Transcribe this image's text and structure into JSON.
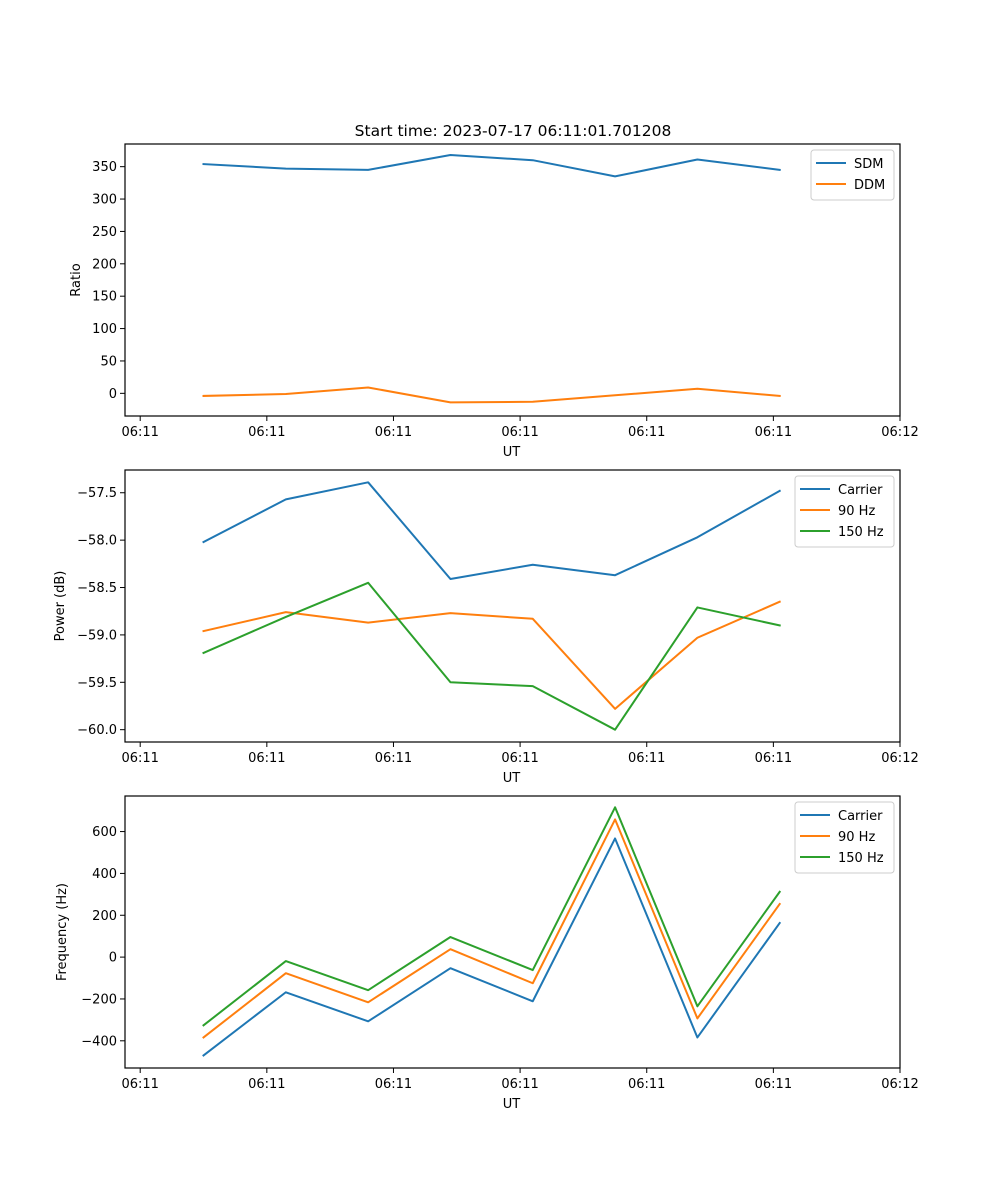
{
  "figure": {
    "title": "Start time: 2023-07-17 06:11:01.701208"
  },
  "chart_data": [
    {
      "type": "line",
      "title": "Start time: 2023-07-17 06:11:01.701208",
      "xlabel": "UT",
      "ylabel": "Ratio",
      "x_tick_labels": [
        "06:11",
        "06:11",
        "06:11",
        "06:11",
        "06:11",
        "06:11",
        "06:12"
      ],
      "x": [
        0.5,
        1.15,
        1.8,
        2.45,
        3.1,
        3.75,
        4.4,
        5.05
      ],
      "xlim": [
        -0.12,
        6.0
      ],
      "ylim": [
        -35,
        385
      ],
      "y_ticks": [
        0,
        50,
        100,
        150,
        200,
        250,
        300,
        350
      ],
      "y_tick_labels": [
        "0",
        "50",
        "100",
        "150",
        "200",
        "250",
        "300",
        "350"
      ],
      "legend_position": "top-right",
      "grid": false,
      "series": [
        {
          "name": "SDM",
          "color": "#1f77b4",
          "values": [
            354,
            347,
            345,
            368,
            360,
            335,
            361,
            345
          ]
        },
        {
          "name": "DDM",
          "color": "#ff7f0e",
          "values": [
            -4,
            -1,
            9,
            -14,
            -13,
            -3,
            7,
            -4
          ]
        }
      ]
    },
    {
      "type": "line",
      "title": "",
      "xlabel": "UT",
      "ylabel": "Power (dB)",
      "x_tick_labels": [
        "06:11",
        "06:11",
        "06:11",
        "06:11",
        "06:11",
        "06:11",
        "06:12"
      ],
      "x": [
        0.5,
        1.15,
        1.8,
        2.45,
        3.1,
        3.75,
        4.4,
        5.05
      ],
      "xlim": [
        -0.12,
        6.0
      ],
      "ylim": [
        -60.13,
        -57.26
      ],
      "y_ticks": [
        -60.0,
        -59.5,
        -59.0,
        -58.5,
        -58.0,
        -57.5
      ],
      "y_tick_labels": [
        "−60.0",
        "−59.5",
        "−59.0",
        "−58.5",
        "−58.0",
        "−57.5"
      ],
      "legend_position": "top-right",
      "grid": false,
      "series": [
        {
          "name": "Carrier",
          "color": "#1f77b4",
          "values": [
            -58.02,
            -57.57,
            -57.39,
            -58.41,
            -58.26,
            -58.37,
            -57.97,
            -57.48
          ]
        },
        {
          "name": "90 Hz",
          "color": "#ff7f0e",
          "values": [
            -58.96,
            -58.76,
            -58.87,
            -58.77,
            -58.83,
            -59.78,
            -59.03,
            -58.65
          ]
        },
        {
          "name": "150 Hz",
          "color": "#2ca02c",
          "values": [
            -59.19,
            -58.81,
            -58.45,
            -59.5,
            -59.54,
            -60.0,
            -58.71,
            -58.9
          ]
        }
      ]
    },
    {
      "type": "line",
      "title": "",
      "xlabel": "UT",
      "ylabel": "Frequency (Hz)",
      "x_tick_labels": [
        "06:11",
        "06:11",
        "06:11",
        "06:11",
        "06:11",
        "06:11",
        "06:12"
      ],
      "x": [
        0.5,
        1.15,
        1.8,
        2.45,
        3.1,
        3.75,
        4.4,
        5.05
      ],
      "xlim": [
        -0.12,
        6.0
      ],
      "ylim": [
        -530,
        770
      ],
      "y_ticks": [
        -400,
        -200,
        0,
        200,
        400,
        600
      ],
      "y_tick_labels": [
        "−400",
        "−200",
        "0",
        "200",
        "400",
        "600"
      ],
      "legend_position": "top-right",
      "grid": false,
      "series": [
        {
          "name": "Carrier",
          "color": "#1f77b4",
          "values": [
            -470,
            -168,
            -307,
            -53,
            -211,
            567,
            -384,
            163
          ]
        },
        {
          "name": "90 Hz",
          "color": "#ff7f0e",
          "values": [
            -384,
            -77,
            -216,
            38,
            -125,
            658,
            -293,
            254
          ]
        },
        {
          "name": "150 Hz",
          "color": "#2ca02c",
          "values": [
            -326,
            -19,
            -158,
            96,
            -62,
            716,
            -235,
            312
          ]
        }
      ]
    }
  ]
}
